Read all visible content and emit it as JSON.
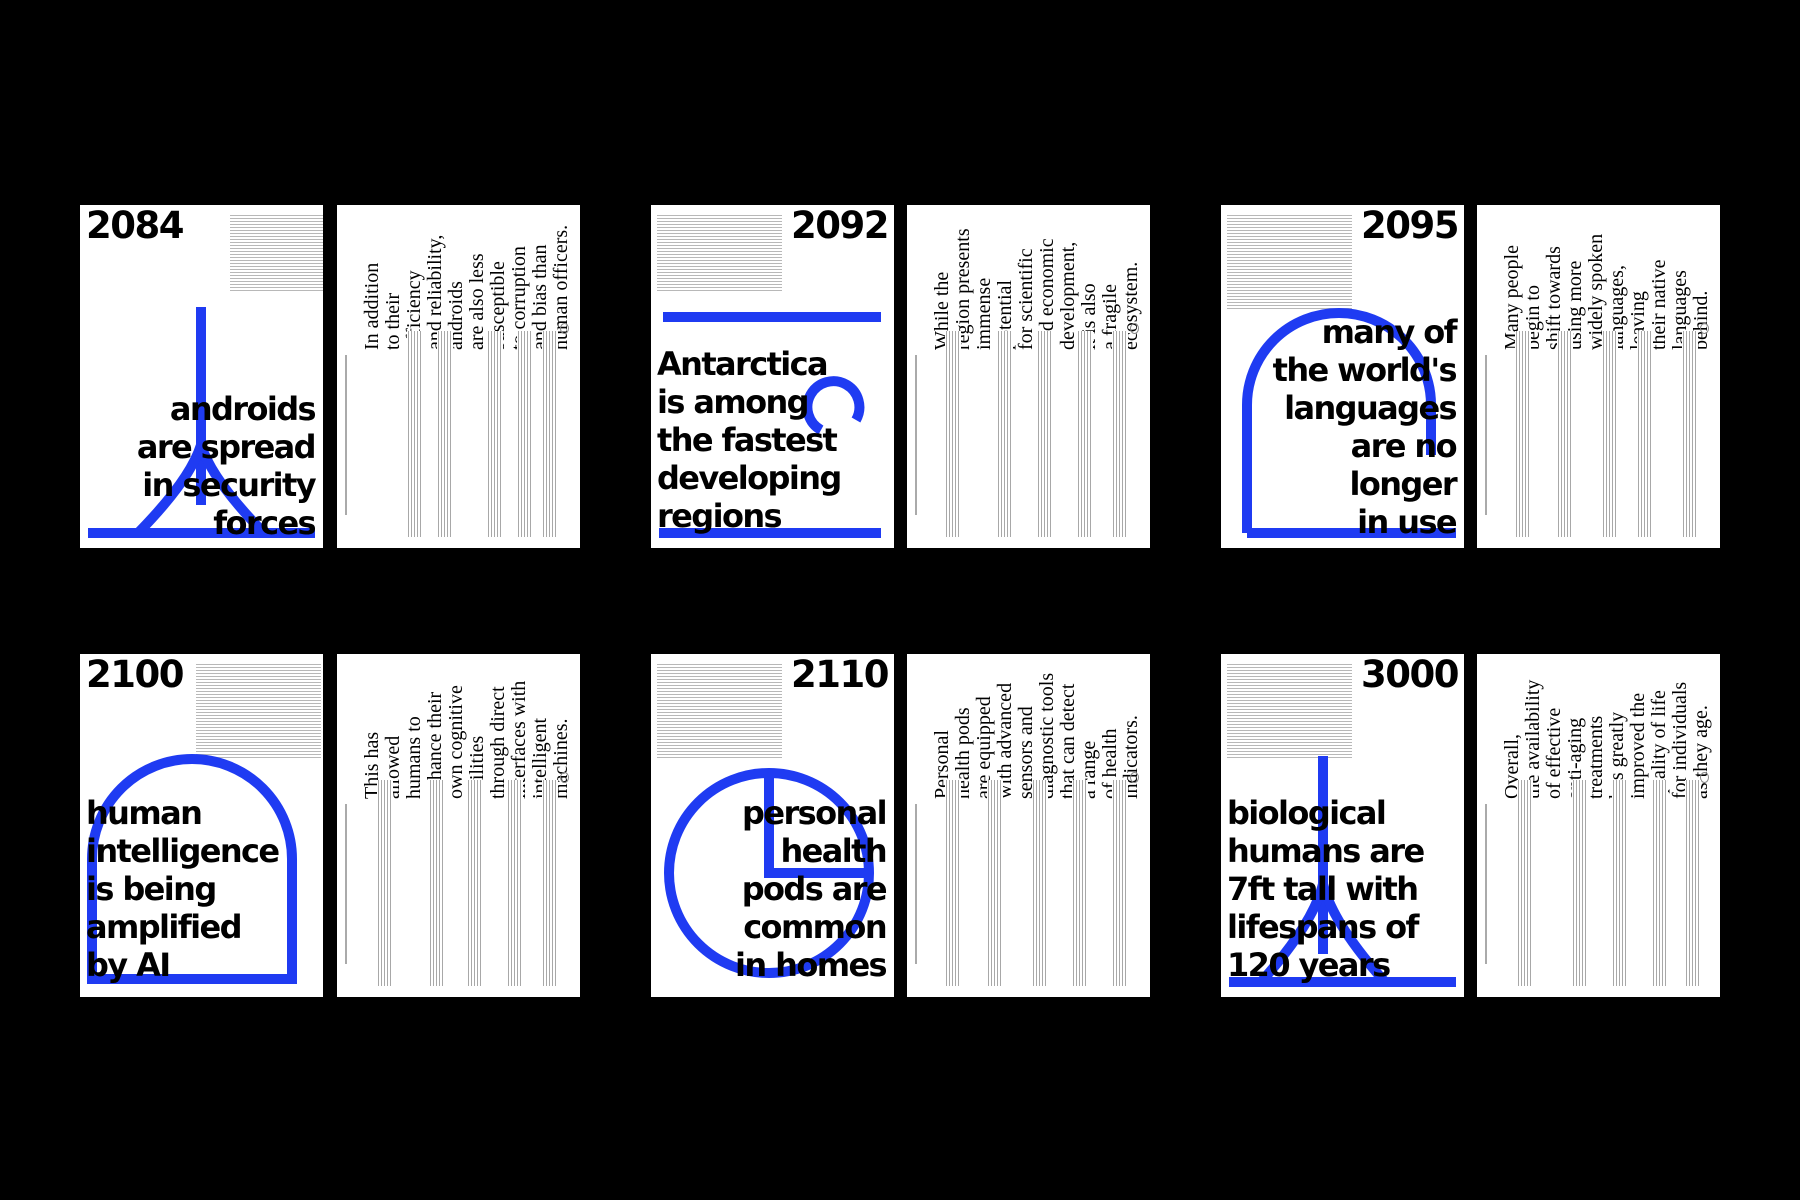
{
  "colors": {
    "background": "#000000",
    "page": "#ffffff",
    "accent": "#1f3bf2"
  },
  "posters": [
    {
      "year": "2084",
      "headline": "androids\nare spread\nin security\nforces",
      "body": "In addition\nto their\nefficiency\nand reliability,\nandroids\nare also less\nsusceptible\nto corruption\nand bias than\nhuman officers."
    },
    {
      "year": "2092",
      "headline": "Antarctica\nis among\nthe fastest\ndeveloping\nregions",
      "body": "While the\nregion presents\nimmense\npotential\nfor scientific\nand economic\ndevelopment,\nit is also\na fragile\necosystem."
    },
    {
      "year": "2095",
      "headline": "many of\nthe world's\nlanguages\nare no\nlonger\nin use",
      "body": "Many people\nbegin to\nshift towards\nusing more\nwidely spoken\nlanguages,\nleaving\ntheir native\nlanguages\nbehind."
    },
    {
      "year": "2100",
      "headline": "human\nintelligence\nis being\namplified\nby AI",
      "body": "This has\nallowed\nhumans to\nenhance their\nown cognitive\nabilities\nthrough direct\ninterfaces with\nintelligent\nmachines."
    },
    {
      "year": "2110",
      "headline": "personal\nhealth\npods are\ncommon\nin homes",
      "body": "Personal\nhealth pods\nare equipped\nwith advanced\nsensors and\ndiagnostic tools\nthat can detect\na range\nof health\nindicators."
    },
    {
      "year": "3000",
      "headline": "biological\nhumans are\n7ft tall with\nlifespans of\n120 years",
      "body": "Overall,\nthe availability\nof effective\nanti-aging\ntreatments\nhas greatly\nimproved the\nquality of life\nfor individuals\nas they age."
    }
  ]
}
